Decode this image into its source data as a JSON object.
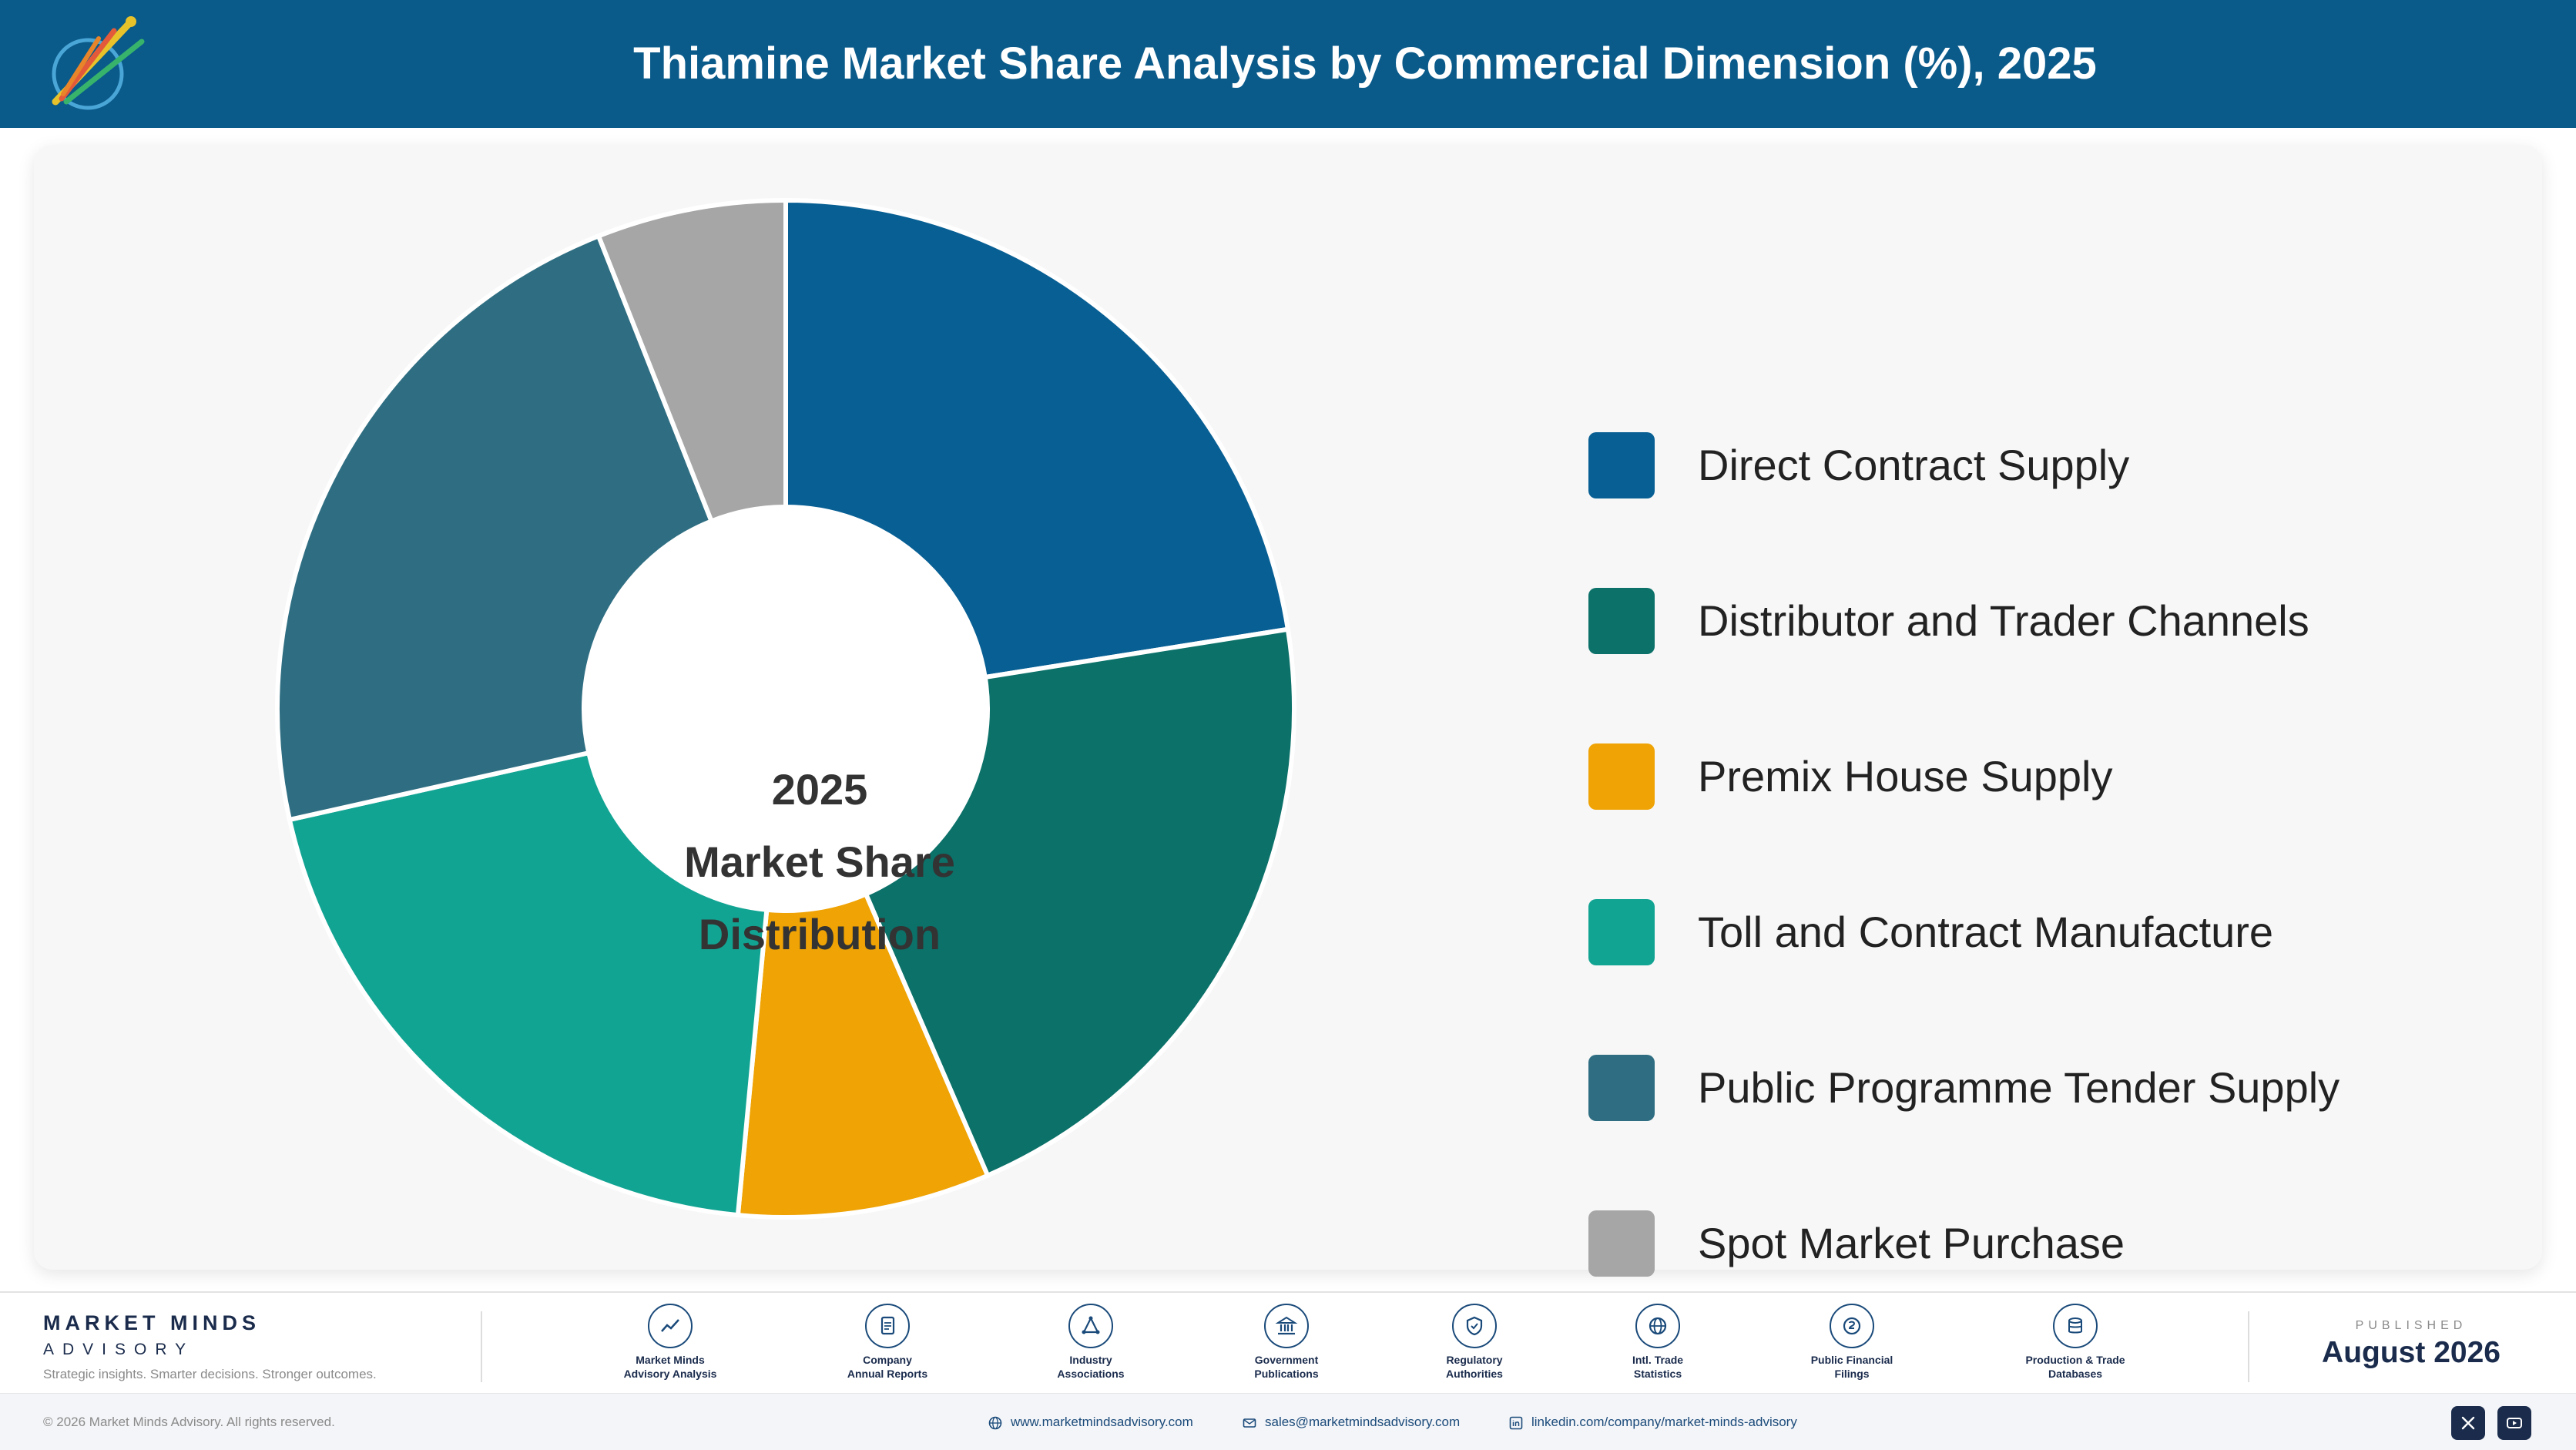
{
  "header": {
    "title": "Thiamine Market Share Analysis by Commercial Dimension (%), 2025"
  },
  "chart_data": {
    "type": "pie",
    "title": "Thiamine Market Share Analysis by Commercial Dimension (%), 2025",
    "center_label": [
      "2025",
      "Market Share",
      "Distribution"
    ],
    "categories": [
      "Direct Contract Supply",
      "Distributor and Trader Channels",
      "Premix House Supply",
      "Toll and Contract Manufacture",
      "Public Programme Tender Supply",
      "Spot Market Purchase"
    ],
    "values": [
      22.5,
      21.0,
      8.0,
      20.0,
      22.5,
      6.0
    ],
    "colors": [
      "#075f94",
      "#0b7169",
      "#efa304",
      "#12a493",
      "#2f6e82",
      "#a6a6a6"
    ],
    "legend_position": "right"
  },
  "footer": {
    "brand_name": "MARKET MINDS",
    "brand_sub": "ADVISORY",
    "tagline": "Strategic insights. Smarter decisions. Stronger outcomes.",
    "sources": [
      {
        "label": "Market Minds\nAdvisory Analysis",
        "icon": "chart-line-icon"
      },
      {
        "label": "Company\nAnnual Reports",
        "icon": "document-icon"
      },
      {
        "label": "Industry\nAssociations",
        "icon": "network-icon"
      },
      {
        "label": "Government\nPublications",
        "icon": "building-icon"
      },
      {
        "label": "Regulatory\nAuthorities",
        "icon": "shield-icon"
      },
      {
        "label": "Intl. Trade\nStatistics",
        "icon": "globe-icon"
      },
      {
        "label": "Public Financial\nFilings",
        "icon": "coin-icon"
      },
      {
        "label": "Production & Trade\nDatabases",
        "icon": "database-icon"
      }
    ],
    "published_label": "PUBLISHED",
    "published_date": "August 2026",
    "copyright": "© 2026 Market Minds Advisory. All rights reserved.",
    "website": "www.marketmindsadvisory.com",
    "email": "sales@marketmindsadvisory.com",
    "linkedin": "linkedin.com/company/market-minds-advisory",
    "social_icons": [
      "x-icon",
      "youtube-icon"
    ]
  }
}
